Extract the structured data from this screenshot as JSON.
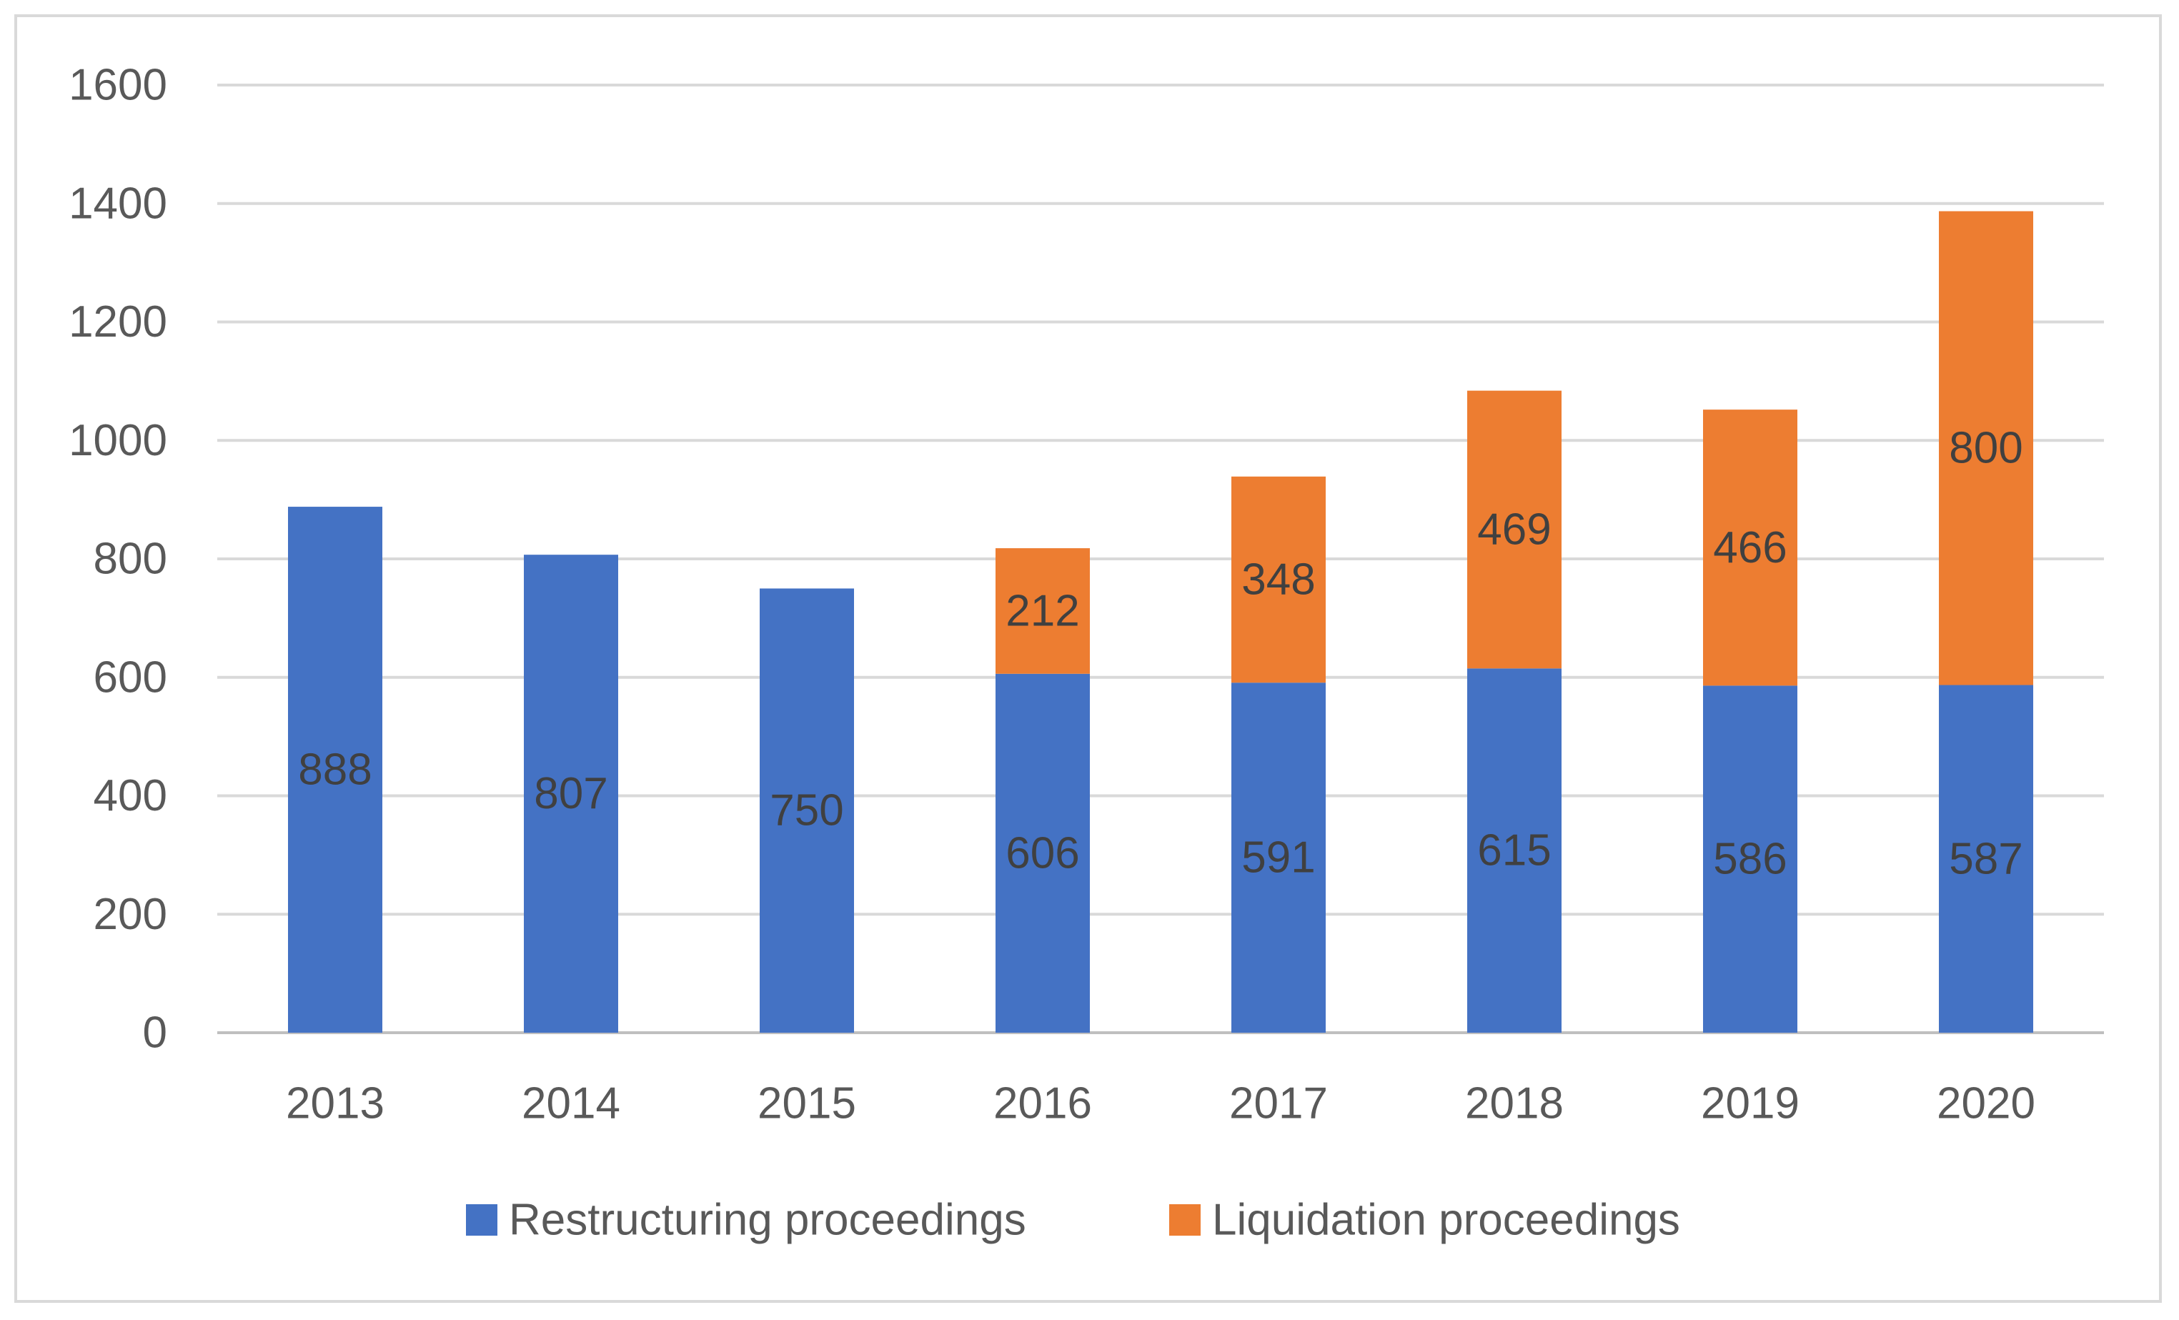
{
  "chart_data": {
    "type": "bar",
    "stacked": true,
    "title": "",
    "xlabel": "",
    "ylabel": "",
    "ylim": [
      0,
      1600
    ],
    "yticks": [
      0,
      200,
      400,
      600,
      800,
      1000,
      1200,
      1400,
      1600
    ],
    "grid": true,
    "legend_position": "bottom",
    "categories": [
      "2013",
      "2014",
      "2015",
      "2016",
      "2017",
      "2018",
      "2019",
      "2020"
    ],
    "series": [
      {
        "name": "Restructuring proceedings",
        "color": "#4472C4",
        "values": [
          888,
          807,
          750,
          606,
          591,
          615,
          586,
          587
        ]
      },
      {
        "name": "Liquidation proceedings",
        "color": "#ED7D31",
        "values": [
          null,
          null,
          null,
          212,
          348,
          469,
          466,
          800
        ]
      }
    ]
  }
}
